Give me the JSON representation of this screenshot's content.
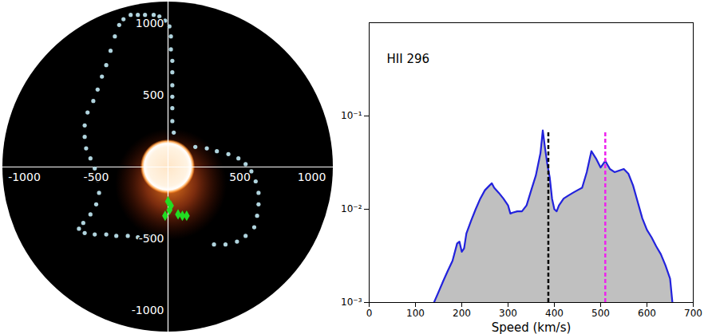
{
  "chart_data": [
    {
      "type": "scatter",
      "xlim": [
        -1150,
        1150
      ],
      "ylim": [
        -1150,
        1150
      ],
      "xticks": [
        -1000,
        -500,
        500,
        1000
      ],
      "yticks": [
        -1000,
        -500,
        500,
        1000
      ],
      "series": [
        {
          "color": "#b0d4de",
          "marker": "circle",
          "x": [
            -340,
            -370,
            -400,
            -430,
            -460,
            -490,
            -520,
            -560,
            -580,
            -580,
            -570,
            -540,
            -510,
            -490,
            -480,
            -500,
            -540,
            -590,
            -620,
            -580,
            -510,
            -430,
            -360,
            -280,
            -210,
            -130,
            -310,
            -260,
            -210,
            -160,
            -100,
            -60,
            -20,
            10,
            20,
            20,
            30,
            30,
            30,
            30,
            30,
            30,
            40,
            190,
            270,
            340,
            420,
            490,
            540,
            580,
            610,
            630,
            630,
            620,
            600,
            540,
            480,
            400,
            320
          ],
          "y": [
            990,
            910,
            810,
            710,
            630,
            540,
            460,
            380,
            290,
            210,
            130,
            60,
            -10,
            -90,
            -180,
            -260,
            -330,
            -390,
            -430,
            -460,
            -470,
            -470,
            -480,
            -480,
            -490,
            -490,
            1030,
            1060,
            1060,
            1060,
            1060,
            1050,
            1020,
            980,
            910,
            820,
            740,
            660,
            570,
            490,
            410,
            320,
            240,
            140,
            130,
            110,
            90,
            60,
            20,
            -30,
            -100,
            -180,
            -260,
            -340,
            -420,
            -480,
            -520,
            -540,
            -540
          ]
        },
        {
          "color": "#22dd22",
          "marker": "diamond",
          "x": [
            0,
            20,
            10,
            -20,
            70,
            100,
            130
          ],
          "y": [
            -240,
            -270,
            -300,
            -340,
            -330,
            -340,
            -340
          ]
        }
      ]
    },
    {
      "type": "area",
      "title": "HII 296",
      "x_label": "Speed (km/s)",
      "log": "y",
      "color": "#2222dd",
      "xlim": [
        0,
        700
      ],
      "xticks": [
        0,
        100,
        200,
        300,
        400,
        500,
        600,
        700
      ],
      "ylim": [
        0.001,
        1
      ],
      "yticks": [
        {
          "value": 0.001,
          "label": "10⁻³"
        },
        {
          "value": 0.01,
          "label": "10⁻²"
        },
        {
          "value": 0.1,
          "label": "10⁻¹"
        }
      ],
      "x": [
        140,
        150,
        160,
        170,
        180,
        190,
        195,
        200,
        205,
        210,
        220,
        230,
        240,
        250,
        260,
        265,
        270,
        280,
        290,
        300,
        305,
        310,
        320,
        330,
        340,
        350,
        360,
        370,
        375,
        380,
        385,
        390,
        395,
        400,
        405,
        410,
        420,
        430,
        440,
        450,
        460,
        470,
        480,
        490,
        500,
        510,
        520,
        530,
        540,
        550,
        560,
        570,
        580,
        590,
        600,
        610,
        620,
        630,
        640,
        650,
        655
      ],
      "values": [
        0.001,
        0.0013,
        0.0017,
        0.0022,
        0.0028,
        0.0043,
        0.0045,
        0.0035,
        0.0038,
        0.0055,
        0.0075,
        0.01,
        0.013,
        0.016,
        0.018,
        0.019,
        0.017,
        0.015,
        0.013,
        0.011,
        0.009,
        0.0092,
        0.0095,
        0.0095,
        0.011,
        0.016,
        0.023,
        0.04,
        0.07,
        0.045,
        0.03,
        0.022,
        0.013,
        0.01,
        0.0095,
        0.011,
        0.013,
        0.014,
        0.015,
        0.016,
        0.017,
        0.025,
        0.042,
        0.035,
        0.028,
        0.033,
        0.027,
        0.025,
        0.026,
        0.027,
        0.024,
        0.018,
        0.012,
        0.008,
        0.006,
        0.005,
        0.004,
        0.0033,
        0.0025,
        0.0018,
        0.001
      ],
      "vlines": [
        {
          "x": 387,
          "ymax": 0.07,
          "color": "#000000",
          "line_style": "dashed"
        },
        {
          "x": 510,
          "ymax": 0.07,
          "color": "#ee22ee",
          "line_style": "dashed"
        }
      ]
    }
  ]
}
